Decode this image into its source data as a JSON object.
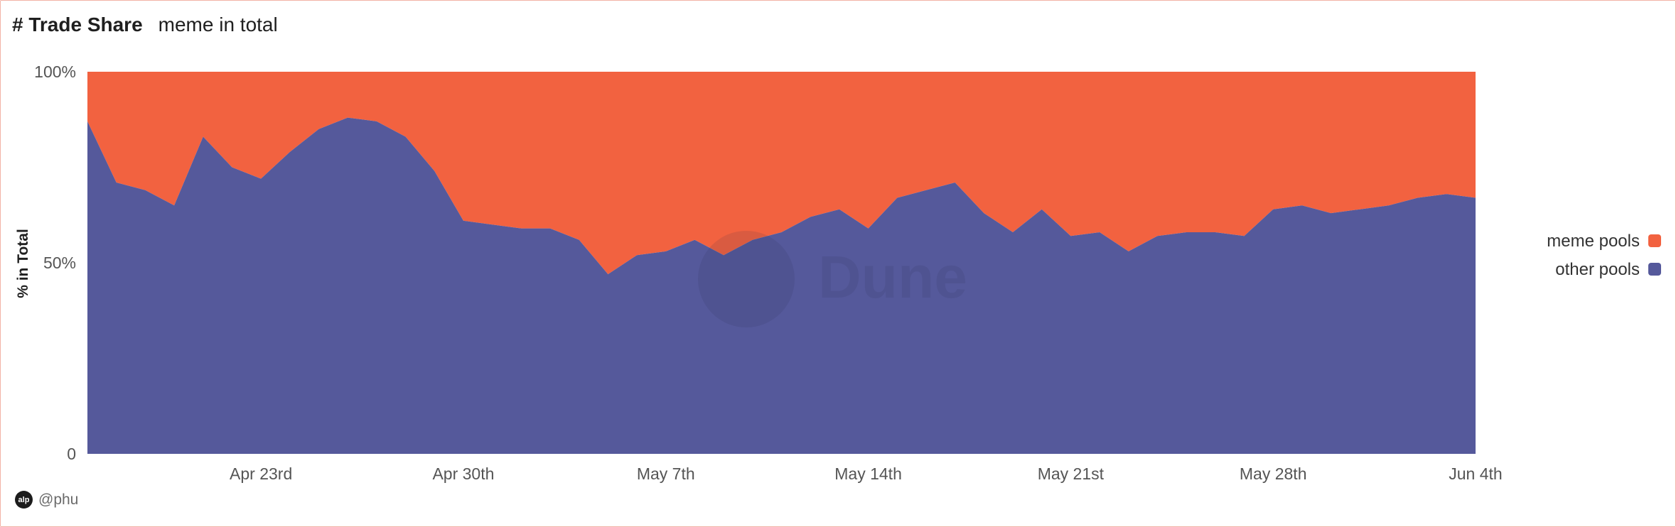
{
  "header": {
    "title": "# Trade Share",
    "subtitle": "meme in total"
  },
  "footer": {
    "author": "@phu",
    "avatar_text": "alp"
  },
  "watermark": {
    "text": "Dune"
  },
  "colors": {
    "meme": "#f26240",
    "other": "#55599b",
    "axis_text": "#555555"
  },
  "chart_data": {
    "type": "area",
    "stacked": true,
    "normalized": true,
    "ylabel": "% in Total",
    "xlabel": "",
    "ylim": [
      0,
      100
    ],
    "y_ticks": [
      "0",
      "50%",
      "100%"
    ],
    "x_tick_labels": [
      "Apr 23rd",
      "Apr 30th",
      "May 7th",
      "May 14th",
      "May 21st",
      "May 28th",
      "Jun 4th"
    ],
    "x_start": "2024-04-17",
    "x_end": "2024-06-04",
    "legend_position": "right",
    "series": [
      {
        "name": "other pools",
        "color": "#55599b",
        "values": [
          87,
          71,
          69,
          65,
          83,
          75,
          72,
          79,
          85,
          88,
          87,
          83,
          74,
          61,
          60,
          59,
          59,
          56,
          47,
          52,
          53,
          56,
          52,
          56,
          58,
          62,
          64,
          59,
          67,
          69,
          71,
          63,
          58,
          64,
          57,
          58,
          53,
          57,
          58,
          58,
          57,
          64,
          65,
          63,
          64,
          65,
          67,
          68,
          67
        ]
      },
      {
        "name": "meme pools",
        "color": "#f26240",
        "values": [
          13,
          29,
          31,
          35,
          17,
          25,
          28,
          21,
          15,
          12,
          13,
          17,
          26,
          39,
          40,
          41,
          41,
          44,
          53,
          48,
          47,
          44,
          48,
          44,
          42,
          38,
          36,
          41,
          33,
          31,
          29,
          37,
          42,
          36,
          43,
          42,
          47,
          43,
          42,
          42,
          43,
          36,
          35,
          37,
          36,
          35,
          33,
          32,
          33
        ]
      }
    ]
  }
}
